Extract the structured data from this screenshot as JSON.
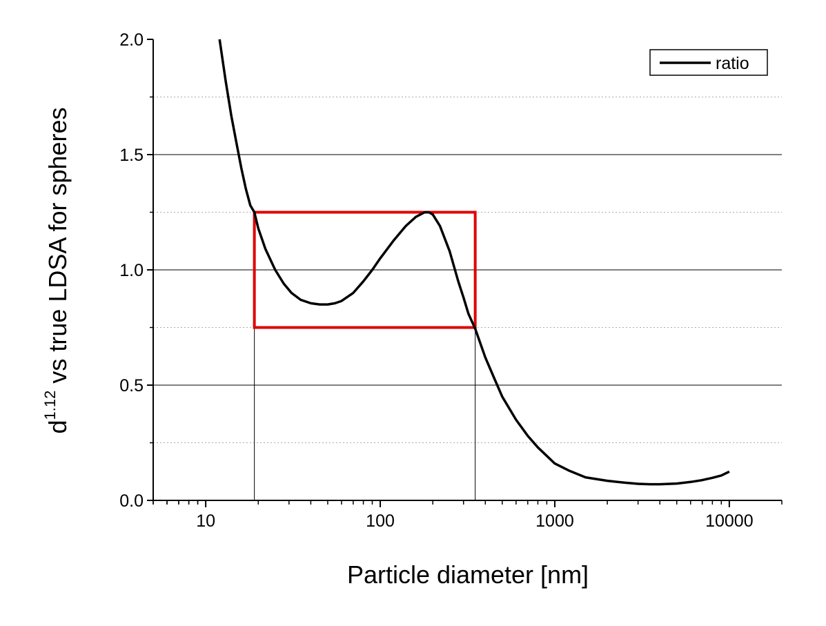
{
  "chart_data": {
    "type": "line",
    "xlabel": "Particle diameter [nm]",
    "ylabel": {
      "base": "d",
      "superscript": "1.12",
      "rest": " vs true LDSA for spheres"
    },
    "x_scale": "log",
    "xlim": [
      5,
      20000
    ],
    "ylim": [
      0.0,
      2.0
    ],
    "x_ticks": [
      {
        "value": 10,
        "label": "10"
      },
      {
        "value": 100,
        "label": "100"
      },
      {
        "value": 1000,
        "label": "1000"
      },
      {
        "value": 10000,
        "label": "10000"
      }
    ],
    "y_ticks": [
      {
        "value": 0.0,
        "label": "0.0"
      },
      {
        "value": 0.5,
        "label": "0.5"
      },
      {
        "value": 1.0,
        "label": "1.0"
      },
      {
        "value": 1.5,
        "label": "1.5"
      },
      {
        "value": 2.0,
        "label": "2.0"
      }
    ],
    "grid": {
      "major_y": [
        0.5,
        1.0,
        1.5
      ],
      "minor_y": [
        0.25,
        0.75,
        1.25,
        1.75
      ]
    },
    "legend": {
      "position": "top-right",
      "entries": [
        "ratio"
      ]
    },
    "series": [
      {
        "name": "ratio",
        "color": "#000000",
        "x": [
          12,
          13,
          14,
          15,
          16,
          17,
          18,
          19,
          20,
          22,
          25,
          28,
          31,
          35,
          40,
          45,
          50,
          55,
          60,
          70,
          80,
          90,
          100,
          120,
          140,
          160,
          180,
          190,
          200,
          220,
          250,
          280,
          300,
          320,
          350,
          400,
          450,
          500,
          600,
          700,
          800,
          1000,
          1200,
          1500,
          2000,
          2500,
          3000,
          3500,
          4000,
          5000,
          6000,
          7000,
          8000,
          9000,
          10000
        ],
        "y": [
          2.0,
          1.82,
          1.67,
          1.55,
          1.44,
          1.35,
          1.28,
          1.25,
          1.18,
          1.09,
          1.0,
          0.94,
          0.9,
          0.87,
          0.855,
          0.85,
          0.85,
          0.855,
          0.865,
          0.9,
          0.95,
          1.0,
          1.05,
          1.13,
          1.19,
          1.23,
          1.25,
          1.25,
          1.24,
          1.19,
          1.08,
          0.95,
          0.88,
          0.81,
          0.745,
          0.62,
          0.53,
          0.45,
          0.35,
          0.28,
          0.23,
          0.16,
          0.13,
          0.1,
          0.085,
          0.077,
          0.072,
          0.07,
          0.07,
          0.073,
          0.08,
          0.088,
          0.098,
          0.108,
          0.125
        ]
      }
    ],
    "annotations": {
      "highlight_box": {
        "x": [
          19,
          350
        ],
        "y": [
          0.75,
          1.25
        ],
        "color": "#e00000"
      },
      "vertical_lines": [
        19,
        350
      ]
    }
  }
}
